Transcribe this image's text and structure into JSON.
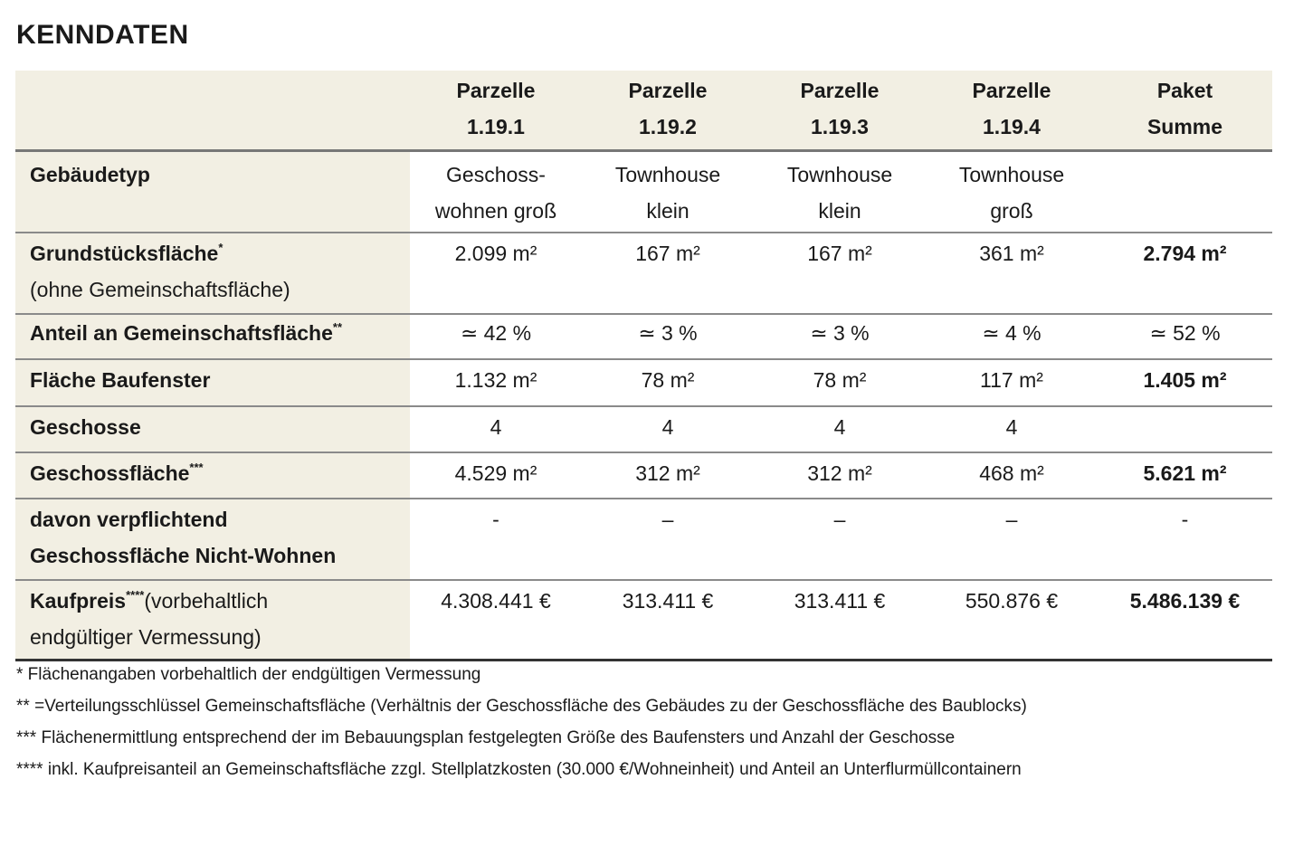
{
  "title": "KENNDATEN",
  "header": {
    "cols": [
      {
        "l1": "Parzelle",
        "l2": "1.19.1"
      },
      {
        "l1": "Parzelle",
        "l2": "1.19.2"
      },
      {
        "l1": "Parzelle",
        "l2": "1.19.3"
      },
      {
        "l1": "Parzelle",
        "l2": "1.19.4"
      },
      {
        "l1": "Paket",
        "l2": "Summe"
      }
    ]
  },
  "rows": {
    "typ": {
      "label": "Gebäudetyp",
      "v": [
        [
          "Geschoss-",
          "wohnen groß"
        ],
        [
          "Townhouse",
          "klein"
        ],
        [
          "Townhouse",
          "klein"
        ],
        [
          "Townhouse",
          "groß"
        ],
        [
          "",
          ""
        ]
      ]
    },
    "grund": {
      "label": "Grundstücksfläche",
      "mark": "*",
      "sub": "(ohne Gemeinschaftsfläche)",
      "v": [
        "2.099 m²",
        "167 m²",
        "167 m²",
        "361 m²",
        "2.794 m²"
      ]
    },
    "anteil": {
      "label": "Anteil an Gemeinschaftsfläche",
      "mark": "**",
      "v": [
        "≃ 42 %",
        "≃ 3 %",
        "≃ 3 %",
        "≃ 4 %",
        "≃ 52 %"
      ]
    },
    "bauf": {
      "label": "Fläche Baufenster",
      "v": [
        "1.132 m²",
        "78 m²",
        "78 m²",
        "117 m²",
        "1.405 m²"
      ]
    },
    "gesch": {
      "label": "Geschosse",
      "v": [
        "4",
        "4",
        "4",
        "4",
        ""
      ]
    },
    "gfl": {
      "label": "Geschossfläche",
      "mark": "***",
      "v": [
        "4.529 m²",
        "312 m²",
        "312 m²",
        "468 m²",
        "5.621 m²"
      ]
    },
    "davon": {
      "label1": "davon verpflichtend",
      "label2": "Geschossfläche Nicht-Wohnen",
      "v": [
        "-",
        "–",
        "–",
        "–",
        "-"
      ]
    },
    "kauf": {
      "label": "Kaufpreis",
      "mark": "****",
      "sub1": "(vorbehaltlich",
      "sub2": "endgültiger Vermessung)",
      "v": [
        "4.308.441 €",
        "313.411 €",
        "313.411 €",
        "550.876 €",
        "5.486.139 €"
      ]
    }
  },
  "notes": [
    "* Flächenangaben vorbehaltlich der endgültigen Vermessung",
    "** =Verteilungsschlüssel Gemeinschaftsfläche (Verhältnis der Geschossfläche des Gebäudes zu der Geschossfläche des Baublocks)",
    "*** Flächenermittlung entsprechend der im Bebauungsplan festgelegten Größe des Baufensters und Anzahl der Geschosse",
    "**** inkl. Kaufpreisanteil an Gemeinschaftsfläche zzgl. Stellplatzkosten (30.000 €/Wohneinheit) und Anteil an Unterflurmüllcontainern"
  ],
  "colors": {
    "header_bg": "#f2efe3",
    "rule": "#8a8a8a"
  }
}
